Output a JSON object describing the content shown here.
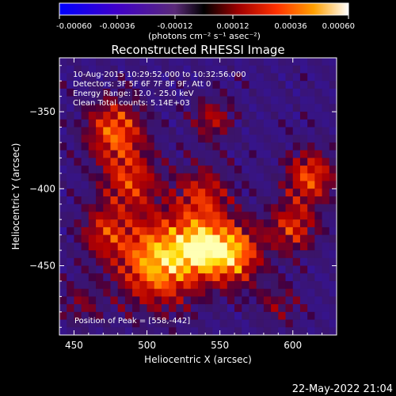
{
  "chart_data": {
    "type": "heatmap",
    "title": "Reconstructed RHESSI Image",
    "xlabel": "Heliocentric X (arcsec)",
    "ylabel": "Heliocentric Y (arcsec)",
    "xlim": [
      440,
      630
    ],
    "ylim": [
      -495,
      -315
    ],
    "x_ticks": [
      450,
      500,
      550,
      600
    ],
    "y_ticks": [
      -350,
      -400,
      -450
    ],
    "colorbar": {
      "min": -0.0006,
      "max": 0.0006,
      "tick_values": [
        -0.0006,
        -0.00036,
        -0.00012,
        0.00012,
        0.00036,
        0.0006
      ],
      "tick_labels": [
        "-0.00060",
        "-0.00036",
        "-0.00012",
        "0.00012",
        "0.00036",
        "0.00060"
      ],
      "unit_label": "(photons cm⁻² s⁻¹ asec⁻²)"
    },
    "info_lines": [
      "10-Aug-2015 10:29:52.000 to 10:32:56.000",
      "Detectors: 3F 5F 6F 7F 8F 9F, Att 0",
      "Energy Range: 12.0 - 25.0 keV",
      "Clean     Total counts: 5.14E+03"
    ],
    "peak_label": "Position of Peak = [558,-442]",
    "peak": [
      558,
      -442
    ],
    "grid": false,
    "sources": [
      {
        "x": 508,
        "y": -447,
        "amp": 0.0006,
        "sigma": 20
      },
      {
        "x": 558,
        "y": -442,
        "amp": 0.00058,
        "sigma": 14
      },
      {
        "x": 535,
        "y": -438,
        "amp": 0.0004,
        "sigma": 12
      },
      {
        "x": 478,
        "y": -362,
        "amp": 0.00045,
        "sigma": 14
      },
      {
        "x": 488,
        "y": -395,
        "amp": 0.00036,
        "sigma": 14
      },
      {
        "x": 470,
        "y": -428,
        "amp": 0.0003,
        "sigma": 12
      },
      {
        "x": 538,
        "y": -405,
        "amp": 0.00034,
        "sigma": 14
      },
      {
        "x": 612,
        "y": -392,
        "amp": 0.00042,
        "sigma": 12
      },
      {
        "x": 600,
        "y": -425,
        "amp": 0.00036,
        "sigma": 12
      },
      {
        "x": 545,
        "y": -355,
        "amp": 0.00028,
        "sigma": 10
      },
      {
        "x": 590,
        "y": -475,
        "amp": 0.0002,
        "sigma": 10
      },
      {
        "x": 455,
        "y": -475,
        "amp": 0.00018,
        "sigma": 10
      }
    ]
  },
  "footer": {
    "date": "22-May-2022 21:04"
  }
}
